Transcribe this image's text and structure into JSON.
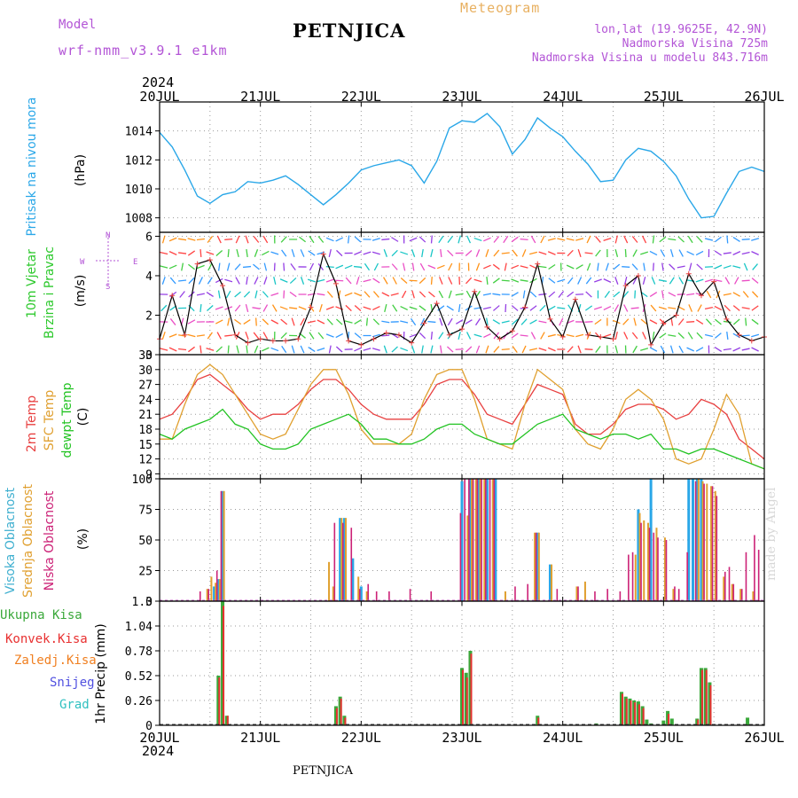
{
  "header": {
    "model_label": "Model",
    "model_name": "wrf-nmm_v3.9.1  e1km",
    "station": "PETNJICA",
    "title": "Meteogram",
    "lonlat": "lon,lat (19.9625E, 42.9N)",
    "altitude": "Nadmorska Visina 725m",
    "altitude_model": "Nadmorska Visina u modelu 843.716m",
    "year_top": "2024",
    "year_bottom": "2024",
    "footer_station": "PETNJICA",
    "credit": "made by Angel"
  },
  "colors": {
    "pressure": "#2aa7e8",
    "wind_speed": "#000000",
    "wind_label": "#2ec92e",
    "temp_2m": "#e84040",
    "temp_sfc": "#e0a030",
    "dewpoint": "#22c322",
    "cloud_high": "#2aa7e8",
    "cloud_mid": "#e0a030",
    "cloud_low": "#cc2277",
    "precip_total": "#3aa83a",
    "precip_conv": "#e83030",
    "precip_frozen": "#f07f20",
    "snow": "#5050e0",
    "hail": "#30c0c0",
    "compass": "#b355d6"
  },
  "x_axis": {
    "ticks": [
      "20JUL",
      "21JUL",
      "22JUL",
      "23JUL",
      "24JUL",
      "25JUL",
      "26JUL"
    ],
    "unit": "hours since first tick",
    "range": [
      0,
      144
    ]
  },
  "chart_data": [
    {
      "type": "line",
      "panel": "pressure",
      "ylabel": [
        "Pritisak na nivou mora",
        "(hPa)"
      ],
      "ylim": [
        1007,
        1016
      ],
      "yticks": [
        "1008",
        "1010",
        "1012",
        "1014"
      ],
      "grid": true,
      "series": [
        {
          "x": [
            0,
            3,
            6,
            9,
            12,
            15,
            18,
            21,
            24,
            27,
            30,
            33,
            36,
            39,
            42,
            45,
            48,
            51,
            54,
            57,
            60,
            63,
            66,
            69,
            72,
            75,
            78,
            81,
            84,
            87,
            90,
            93,
            96,
            99,
            102,
            105,
            108,
            111,
            114,
            117,
            120,
            123,
            126,
            129,
            132,
            135,
            138,
            141,
            144
          ],
          "values": [
            1013.9,
            1012.9,
            1011.3,
            1009.5,
            1009.0,
            1009.6,
            1009.8,
            1010.5,
            1010.4,
            1010.6,
            1010.9,
            1010.3,
            1009.6,
            1008.9,
            1009.6,
            1010.4,
            1011.3,
            1011.6,
            1011.8,
            1012.0,
            1011.6,
            1010.4,
            1011.9,
            1014.2,
            1014.7,
            1014.6,
            1015.2,
            1014.3,
            1012.4,
            1013.4,
            1014.9,
            1014.2,
            1013.6,
            1012.6,
            1011.7,
            1010.5,
            1010.6,
            1012.0,
            1012.8,
            1012.6,
            1011.9,
            1010.9,
            1009.3,
            1008.0,
            1008.1,
            1009.7,
            1011.2,
            1011.5,
            1011.2
          ]
        }
      ]
    },
    {
      "type": "line",
      "panel": "wind",
      "ylabel": [
        "10m Vjetar",
        "Brzina i Pravac",
        "(m/s)"
      ],
      "ylim": [
        0,
        6.2
      ],
      "yticks": [
        "0",
        "2",
        "4",
        "6"
      ],
      "grid": true,
      "compass": [
        "N",
        "S",
        "W",
        "E"
      ],
      "series": [
        {
          "x": [
            0,
            3,
            6,
            9,
            12,
            15,
            18,
            21,
            24,
            27,
            30,
            33,
            36,
            39,
            42,
            45,
            48,
            51,
            54,
            57,
            60,
            63,
            66,
            69,
            72,
            75,
            78,
            81,
            84,
            87,
            90,
            93,
            96,
            99,
            102,
            105,
            108,
            111,
            114,
            117,
            120,
            123,
            126,
            129,
            132,
            135,
            138,
            141,
            144
          ],
          "values": [
            0.8,
            3.0,
            1.0,
            4.6,
            4.8,
            3.5,
            1.0,
            0.6,
            0.8,
            0.7,
            0.7,
            0.8,
            2.4,
            5.1,
            3.6,
            0.7,
            0.5,
            0.8,
            1.1,
            1.0,
            0.6,
            1.6,
            2.6,
            1.0,
            1.3,
            3.2,
            1.4,
            0.8,
            1.2,
            2.4,
            4.6,
            1.8,
            0.9,
            2.8,
            1.0,
            0.9,
            0.8,
            3.5,
            4.0,
            0.5,
            1.6,
            2.0,
            4.1,
            3.0,
            3.7,
            1.8,
            1.0,
            0.7,
            0.9
          ]
        }
      ]
    },
    {
      "type": "line",
      "panel": "temperature",
      "ylabel": [
        "2m Temp",
        "SFC Temp",
        "dewpt Temp",
        "(C)"
      ],
      "ylim": [
        8,
        33
      ],
      "yticks": [
        "9",
        "12",
        "15",
        "18",
        "21",
        "24",
        "27",
        "30",
        "33"
      ],
      "grid": true,
      "series": [
        {
          "name": "2m Temp",
          "x": [
            0,
            3,
            6,
            9,
            12,
            15,
            18,
            21,
            24,
            27,
            30,
            33,
            36,
            39,
            42,
            45,
            48,
            51,
            54,
            57,
            60,
            63,
            66,
            69,
            72,
            75,
            78,
            81,
            84,
            87,
            90,
            93,
            96,
            99,
            102,
            105,
            108,
            111,
            114,
            117,
            120,
            123,
            126,
            129,
            132,
            135,
            138,
            141,
            144
          ],
          "values": [
            20,
            21,
            24,
            28,
            29,
            27,
            25,
            22,
            20,
            21,
            21,
            23,
            26,
            28,
            28,
            26,
            23,
            21,
            20,
            20,
            20,
            23,
            27,
            28,
            28,
            25,
            21,
            20,
            19,
            23,
            27,
            26,
            25,
            19,
            17,
            17,
            19,
            22,
            23,
            23,
            22,
            20,
            21,
            24,
            23,
            21,
            16,
            14,
            12
          ]
        },
        {
          "name": "SFC Temp",
          "x": [
            0,
            3,
            6,
            9,
            12,
            15,
            18,
            21,
            24,
            27,
            30,
            33,
            36,
            39,
            42,
            45,
            48,
            51,
            54,
            57,
            60,
            63,
            66,
            69,
            72,
            75,
            78,
            81,
            84,
            87,
            90,
            93,
            96,
            99,
            102,
            105,
            108,
            111,
            114,
            117,
            120,
            123,
            126,
            129,
            132,
            135,
            138,
            141,
            144
          ],
          "values": [
            16,
            16,
            23,
            29,
            31,
            29,
            25,
            21,
            17,
            16,
            17,
            22,
            27,
            30,
            30,
            25,
            18,
            15,
            15,
            15,
            17,
            24,
            29,
            30,
            30,
            24,
            16,
            15,
            14,
            23,
            30,
            28,
            26,
            18,
            15,
            14,
            18,
            24,
            26,
            24,
            20,
            12,
            11,
            12,
            18,
            25,
            21,
            11,
            10
          ]
        },
        {
          "name": "dewpt Temp",
          "x": [
            0,
            3,
            6,
            9,
            12,
            15,
            18,
            21,
            24,
            27,
            30,
            33,
            36,
            39,
            42,
            45,
            48,
            51,
            54,
            57,
            60,
            63,
            66,
            69,
            72,
            75,
            78,
            81,
            84,
            87,
            90,
            93,
            96,
            99,
            102,
            105,
            108,
            111,
            114,
            117,
            120,
            123,
            126,
            129,
            132,
            135,
            138,
            141,
            144
          ],
          "values": [
            17,
            16,
            18,
            19,
            20,
            22,
            19,
            18,
            15,
            14,
            14,
            15,
            18,
            19,
            20,
            21,
            19,
            16,
            16,
            15,
            15,
            16,
            18,
            19,
            19,
            17,
            16,
            15,
            15,
            17,
            19,
            20,
            21,
            18,
            17,
            16,
            17,
            17,
            16,
            17,
            14,
            14,
            13,
            14,
            14,
            13,
            12,
            11,
            10
          ]
        }
      ]
    },
    {
      "type": "bar",
      "panel": "clouds",
      "ylabel": [
        "Visoka Oblacnost",
        "Srednja Oblacnost",
        "Niska Oblacnost",
        "(%)"
      ],
      "ylim": [
        0,
        100
      ],
      "yticks": [
        "0",
        "25",
        "50",
        "75",
        "100"
      ],
      "grid": true,
      "series": [
        {
          "name": "Visoka Oblacnost",
          "x": [
            13,
            14,
            15,
            43,
            44,
            46,
            48,
            72,
            74,
            76,
            78,
            80,
            90,
            93,
            114,
            117,
            126,
            127,
            128,
            129
          ],
          "values": [
            12,
            18,
            90,
            68,
            68,
            35,
            12,
            98,
            100,
            100,
            100,
            100,
            56,
            30,
            75,
            100,
            100,
            100,
            100,
            100
          ]
        },
        {
          "name": "Srednja Oblacnost",
          "x": [
            11,
            12,
            13,
            14,
            15,
            40,
            41,
            43,
            44,
            47,
            49,
            73,
            74,
            75,
            76,
            77,
            79,
            82,
            89,
            90,
            93,
            99,
            101,
            113,
            114,
            115,
            116,
            118,
            120,
            122,
            128,
            129,
            130,
            131,
            132,
            134,
            136,
            138,
            141
          ],
          "values": [
            10,
            20,
            15,
            18,
            90,
            32,
            12,
            68,
            68,
            20,
            8,
            70,
            100,
            100,
            100,
            100,
            100,
            8,
            56,
            56,
            30,
            12,
            16,
            38,
            72,
            66,
            64,
            60,
            52,
            10,
            100,
            98,
            96,
            94,
            90,
            20,
            14,
            10,
            8
          ]
        },
        {
          "name": "Niska Oblacnost",
          "x": [
            10,
            12,
            14,
            15,
            42,
            44,
            46,
            48,
            50,
            52,
            55,
            60,
            65,
            72,
            73,
            74,
            75,
            76,
            77,
            78,
            79,
            80,
            85,
            88,
            90,
            95,
            100,
            104,
            107,
            110,
            112,
            113,
            115,
            117,
            118,
            119,
            121,
            123,
            124,
            126,
            128,
            130,
            132,
            133,
            135,
            136,
            137,
            139,
            140,
            142,
            143
          ],
          "values": [
            8,
            10,
            25,
            90,
            64,
            64,
            60,
            10,
            14,
            8,
            8,
            10,
            8,
            72,
            100,
            100,
            100,
            100,
            100,
            100,
            100,
            100,
            12,
            14,
            56,
            10,
            12,
            8,
            10,
            8,
            38,
            40,
            64,
            60,
            56,
            52,
            50,
            12,
            10,
            40,
            98,
            96,
            94,
            86,
            24,
            28,
            14,
            10,
            40,
            54,
            42
          ]
        }
      ]
    },
    {
      "type": "bar",
      "panel": "precipitation",
      "ylabel": [
        "1hr Precip (mm)"
      ],
      "ylim": [
        0,
        1.3
      ],
      "yticks": [
        "0",
        "0.26",
        "0.52",
        "0.78",
        "1.04",
        "1.3"
      ],
      "grid": true,
      "legend": [
        "Ukupna Kisa",
        "Konvek.Kisa",
        "Zaledj.Kisa",
        "Snijeg",
        "Grad"
      ],
      "series": [
        {
          "name": "Ukupna Kisa",
          "x": [
            14,
            15,
            16,
            42,
            43,
            44,
            72,
            73,
            74,
            90,
            104,
            110,
            111,
            112,
            113,
            114,
            115,
            116,
            117,
            120,
            121,
            122,
            128,
            129,
            130,
            131,
            140
          ],
          "values": [
            0.52,
            1.3,
            0.1,
            0.2,
            0.3,
            0.1,
            0.6,
            0.55,
            0.78,
            0.1,
            0.02,
            0.35,
            0.3,
            0.28,
            0.26,
            0.25,
            0.2,
            0.06,
            0.02,
            0.05,
            0.15,
            0.07,
            0.07,
            0.6,
            0.6,
            0.45,
            0.08
          ]
        },
        {
          "name": "Konvek.Kisa",
          "x": [
            14,
            15,
            16,
            42,
            43,
            44,
            72,
            73,
            74,
            90,
            110,
            111,
            112,
            113,
            114,
            115,
            121,
            128,
            129,
            130,
            131
          ],
          "values": [
            0.5,
            1.25,
            0.1,
            0.18,
            0.28,
            0.08,
            0.58,
            0.5,
            0.75,
            0.08,
            0.33,
            0.28,
            0.26,
            0.24,
            0.22,
            0.18,
            0.12,
            0.06,
            0.58,
            0.58,
            0.42
          ]
        }
      ]
    }
  ]
}
